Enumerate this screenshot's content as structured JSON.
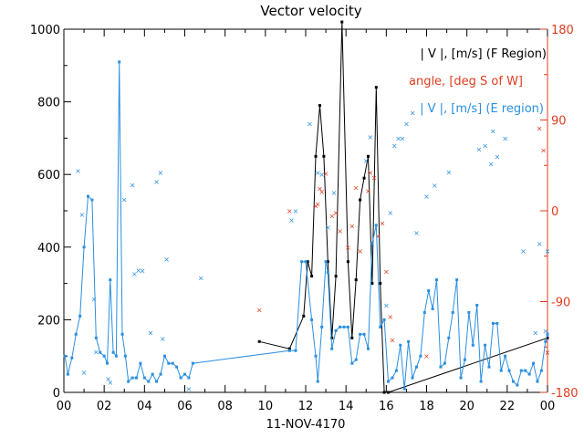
{
  "chart_data": {
    "type": "line",
    "title": "Vector velocity",
    "xlabel": "11-NOV-4170",
    "x_ticks": [
      "00",
      "02",
      "04",
      "06",
      "08",
      "10",
      "12",
      "14",
      "16",
      "18",
      "20",
      "22",
      "00"
    ],
    "xlim": [
      0,
      24
    ],
    "ylim_left": [
      0,
      1000
    ],
    "y_ticks_left": [
      "0",
      "200",
      "400",
      "600",
      "800",
      "1000"
    ],
    "ylim_right": [
      -180,
      180
    ],
    "y_ticks_right": [
      "-180",
      "-90",
      "0",
      "90",
      "180"
    ],
    "legend_position": "top-right",
    "colors": {
      "f_region": "#000000",
      "angle": "#e03c1e",
      "e_region": "#2a8fe0",
      "axes": "#000000",
      "right_axis": "#e03c1e"
    },
    "series": [
      {
        "name": "| V |, [m/s] (F Region)",
        "style": "line",
        "axis": "left",
        "points": [
          [
            9.7,
            140
          ],
          [
            11.2,
            120
          ],
          [
            11.9,
            210
          ],
          [
            12.1,
            360
          ],
          [
            12.3,
            320
          ],
          [
            12.5,
            650
          ],
          [
            12.7,
            790
          ],
          [
            12.9,
            650
          ],
          [
            13.1,
            360
          ],
          [
            13.3,
            150
          ],
          [
            13.5,
            320
          ],
          [
            13.8,
            1020
          ],
          [
            14.1,
            360
          ],
          [
            14.3,
            150
          ],
          [
            14.5,
            310
          ],
          [
            14.7,
            530
          ],
          [
            14.9,
            590
          ],
          [
            15.1,
            650
          ],
          [
            15.3,
            300
          ],
          [
            15.5,
            840
          ],
          [
            15.7,
            300
          ],
          [
            15.9,
            0
          ],
          [
            16.1,
            0
          ],
          [
            24,
            150
          ]
        ]
      },
      {
        "name": "angle, [deg S of W]",
        "style": "scatter",
        "axis": "right",
        "points": [
          [
            9.7,
            -98
          ],
          [
            11.2,
            0
          ],
          [
            12.5,
            5
          ],
          [
            12.6,
            7
          ],
          [
            12.7,
            22
          ],
          [
            12.8,
            19
          ],
          [
            13.0,
            37
          ],
          [
            13.3,
            -5
          ],
          [
            13.5,
            -2
          ],
          [
            13.7,
            -20
          ],
          [
            14.1,
            -36
          ],
          [
            14.3,
            -15
          ],
          [
            14.5,
            23
          ],
          [
            14.7,
            -40
          ],
          [
            15.1,
            20
          ],
          [
            15.2,
            38
          ],
          [
            15.4,
            33
          ],
          [
            15.6,
            -25
          ],
          [
            15.8,
            -12
          ],
          [
            16.0,
            -60
          ],
          [
            16.2,
            -105
          ],
          [
            16.3,
            -128
          ],
          [
            18.0,
            -144
          ],
          [
            24,
            -140
          ],
          [
            23.8,
            60
          ],
          [
            23.6,
            82
          ]
        ]
      },
      {
        "name": "| V |, [m/s] (E region)",
        "style": "line",
        "axis": "left",
        "points": [
          [
            0.05,
            100
          ],
          [
            0.2,
            50
          ],
          [
            0.4,
            95
          ],
          [
            0.6,
            160
          ],
          [
            0.8,
            210
          ],
          [
            1.0,
            400
          ],
          [
            1.2,
            540
          ],
          [
            1.4,
            530
          ],
          [
            1.6,
            150
          ],
          [
            1.8,
            110
          ],
          [
            2.0,
            100
          ],
          [
            2.15,
            80
          ],
          [
            2.3,
            310
          ],
          [
            2.45,
            110
          ],
          [
            2.6,
            100
          ],
          [
            2.75,
            910
          ],
          [
            2.9,
            160
          ],
          [
            3.05,
            100
          ],
          [
            3.2,
            30
          ],
          [
            3.4,
            40
          ],
          [
            3.6,
            40
          ],
          [
            3.8,
            80
          ],
          [
            4.0,
            40
          ],
          [
            4.2,
            30
          ],
          [
            4.4,
            50
          ],
          [
            4.6,
            30
          ],
          [
            4.8,
            50
          ],
          [
            5.0,
            100
          ],
          [
            5.2,
            80
          ],
          [
            5.4,
            80
          ],
          [
            5.6,
            70
          ],
          [
            5.8,
            40
          ],
          [
            6.0,
            50
          ],
          [
            6.2,
            40
          ],
          [
            6.4,
            80
          ],
          [
            11.2,
            115
          ],
          [
            11.5,
            115
          ],
          [
            11.8,
            360
          ],
          [
            12.0,
            360
          ],
          [
            12.3,
            200
          ],
          [
            12.5,
            100
          ],
          [
            12.6,
            30
          ],
          [
            12.8,
            180
          ],
          [
            13.0,
            360
          ],
          [
            13.1,
            330
          ],
          [
            13.3,
            120
          ],
          [
            13.5,
            170
          ],
          [
            13.7,
            180
          ],
          [
            13.9,
            180
          ],
          [
            14.1,
            180
          ],
          [
            14.3,
            80
          ],
          [
            14.5,
            90
          ],
          [
            14.7,
            160
          ],
          [
            14.9,
            160
          ],
          [
            15.1,
            120
          ],
          [
            15.3,
            410
          ],
          [
            15.5,
            460
          ],
          [
            15.7,
            180
          ],
          [
            15.9,
            200
          ],
          [
            16.1,
            30
          ],
          [
            16.3,
            40
          ],
          [
            16.5,
            60
          ],
          [
            16.7,
            130
          ],
          [
            16.9,
            10
          ],
          [
            17.1,
            140
          ],
          [
            17.3,
            40
          ],
          [
            17.5,
            70
          ],
          [
            17.7,
            100
          ],
          [
            17.9,
            220
          ],
          [
            18.1,
            280
          ],
          [
            18.3,
            230
          ],
          [
            18.5,
            310
          ],
          [
            18.7,
            70
          ],
          [
            18.9,
            80
          ],
          [
            19.1,
            150
          ],
          [
            19.3,
            220
          ],
          [
            19.5,
            310
          ],
          [
            19.7,
            40
          ],
          [
            19.9,
            90
          ],
          [
            20.1,
            220
          ],
          [
            20.3,
            130
          ],
          [
            20.5,
            240
          ],
          [
            20.7,
            30
          ],
          [
            20.9,
            130
          ],
          [
            21.1,
            70
          ],
          [
            21.3,
            190
          ],
          [
            21.5,
            190
          ],
          [
            21.7,
            60
          ],
          [
            21.9,
            100
          ],
          [
            22.1,
            60
          ],
          [
            22.3,
            30
          ],
          [
            22.5,
            20
          ],
          [
            22.7,
            60
          ],
          [
            22.9,
            60
          ],
          [
            23.1,
            50
          ],
          [
            23.3,
            80
          ],
          [
            23.5,
            30
          ],
          [
            23.7,
            60
          ],
          [
            23.9,
            140
          ],
          [
            24,
            160
          ]
        ],
        "scatter_points": [
          [
            0.7,
            610
          ],
          [
            0.9,
            490
          ],
          [
            1.5,
            258
          ],
          [
            1.0,
            55
          ],
          [
            1.6,
            112
          ],
          [
            2.2,
            38
          ],
          [
            2.3,
            28
          ],
          [
            3.0,
            531
          ],
          [
            3.4,
            572
          ],
          [
            3.5,
            327
          ],
          [
            3.7,
            337
          ],
          [
            3.9,
            335
          ],
          [
            4.3,
            165
          ],
          [
            4.6,
            580
          ],
          [
            4.8,
            605
          ],
          [
            4.9,
            148
          ],
          [
            5.1,
            367
          ],
          [
            6.8,
            315
          ],
          [
            6.2,
            10
          ],
          [
            12.2,
            740
          ],
          [
            11.5,
            500
          ],
          [
            11.3,
            475
          ],
          [
            12.6,
            605
          ],
          [
            12.8,
            600
          ],
          [
            13.1,
            455
          ],
          [
            13.4,
            550
          ],
          [
            15.2,
            703
          ],
          [
            15.0,
            638
          ],
          [
            16.0,
            240
          ],
          [
            16.2,
            495
          ],
          [
            16.4,
            680
          ],
          [
            16.6,
            700
          ],
          [
            16.8,
            700
          ],
          [
            17.0,
            740
          ],
          [
            17.3,
            770
          ],
          [
            17.5,
            440
          ],
          [
            18.0,
            540
          ],
          [
            18.4,
            570
          ],
          [
            19.1,
            607
          ],
          [
            20.6,
            670
          ],
          [
            20.9,
            680
          ],
          [
            21.3,
            720
          ],
          [
            21.2,
            630
          ],
          [
            21.5,
            650
          ],
          [
            21.9,
            700
          ],
          [
            22.8,
            390
          ],
          [
            23.6,
            410
          ],
          [
            23.4,
            165
          ],
          [
            23.9,
            170
          ],
          [
            24,
            390
          ]
        ]
      }
    ]
  }
}
